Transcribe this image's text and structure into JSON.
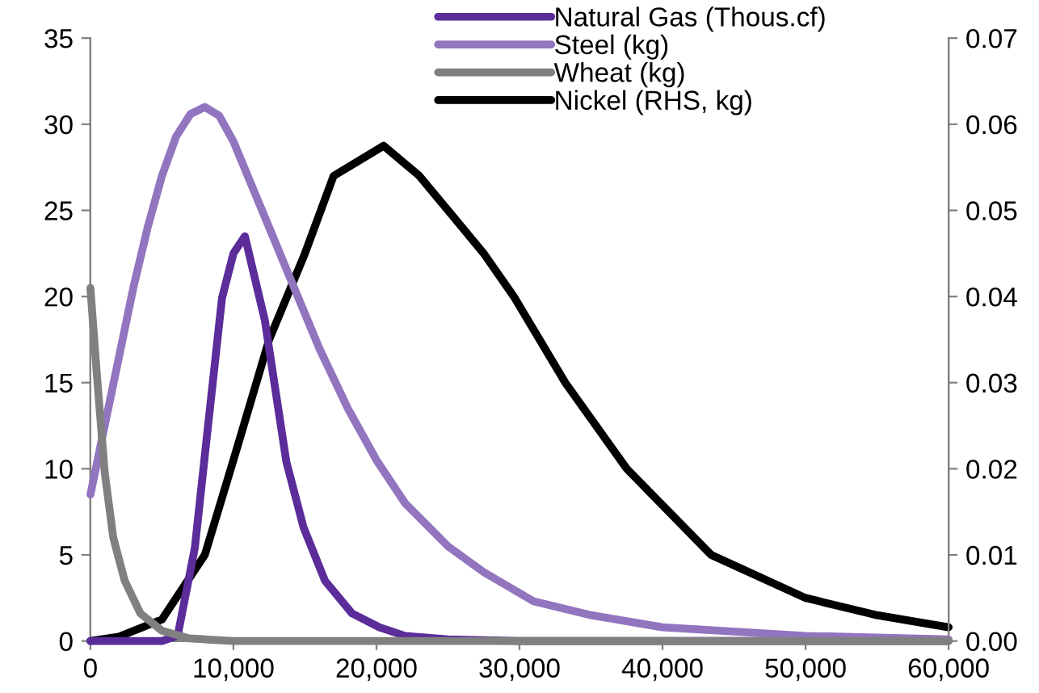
{
  "chart_data": {
    "type": "line",
    "xlim": [
      0,
      60000
    ],
    "xticks": [
      {
        "value": 0,
        "label": "0"
      },
      {
        "value": 10000,
        "label": "10,000"
      },
      {
        "value": 20000,
        "label": "20,000"
      },
      {
        "value": 30000,
        "label": "30,000"
      },
      {
        "value": 40000,
        "label": "40,000"
      },
      {
        "value": 50000,
        "label": "50,000"
      },
      {
        "value": 60000,
        "label": "60,000"
      }
    ],
    "ylim": [
      0,
      35
    ],
    "yticks": [
      0,
      5,
      10,
      15,
      20,
      25,
      30,
      35
    ],
    "y2lim": [
      0,
      0.07
    ],
    "y2ticks": [
      {
        "value": 0,
        "label": "0.00"
      },
      {
        "value": 0.01,
        "label": "0.01"
      },
      {
        "value": 0.02,
        "label": "0.02"
      },
      {
        "value": 0.03,
        "label": "0.03"
      },
      {
        "value": 0.04,
        "label": "0.04"
      },
      {
        "value": 0.05,
        "label": "0.05"
      },
      {
        "value": 0.06,
        "label": "0.06"
      },
      {
        "value": 0.07,
        "label": "0.07"
      }
    ],
    "grid": false,
    "legend": "top right",
    "marker": "none",
    "line_style": "solid",
    "series": [
      {
        "name": "Natural Gas (Thous.cf)",
        "color": "#5b2c9a",
        "x": [
          0,
          5000,
          6100,
          7300,
          8200,
          9200,
          10000,
          10800,
          12200,
          13700,
          14900,
          16400,
          18300,
          20200,
          22000,
          25000,
          30000,
          60000
        ],
        "values": [
          0,
          0,
          0.3,
          5.4,
          12.3,
          19.9,
          22.5,
          23.5,
          18.6,
          10.4,
          6.6,
          3.5,
          1.6,
          0.8,
          0.3,
          0.1,
          0,
          0
        ]
      },
      {
        "name": "Steel (kg)",
        "color": "#9274bf",
        "x": [
          0,
          1000,
          2000,
          3000,
          4000,
          5000,
          6000,
          7000,
          8000,
          9000,
          10000,
          12000,
          14000,
          16000,
          18000,
          20000,
          22000,
          25000,
          27500,
          31000,
          35000,
          40000,
          50000,
          60000
        ],
        "values": [
          8.5,
          12.5,
          16.5,
          20.5,
          24,
          27,
          29.3,
          30.6,
          31,
          30.5,
          29,
          25,
          21,
          17,
          13.5,
          10.5,
          8,
          5.5,
          4,
          2.3,
          1.5,
          0.8,
          0.3,
          0.1
        ]
      },
      {
        "name": "Wheat (kg)",
        "color": "#808080",
        "x": [
          0,
          450,
          1000,
          1600,
          2400,
          3500,
          5000,
          6900,
          10000,
          60000
        ],
        "values": [
          20.5,
          15.5,
          9.8,
          6,
          3.5,
          1.6,
          0.6,
          0.15,
          0,
          0
        ]
      },
      {
        "name": "Nickel (RHS, kg)",
        "color": "#000000",
        "axis": "y2",
        "x": [
          0,
          2000,
          5000,
          8000,
          10000,
          12500,
          15000,
          17000,
          20500,
          23000,
          25000,
          27500,
          29600,
          33200,
          37500,
          43400,
          50000,
          55000,
          60000
        ],
        "values": [
          0,
          0.0005,
          0.0025,
          0.01,
          0.021,
          0.035,
          0.045,
          0.054,
          0.0575,
          0.054,
          0.05,
          0.045,
          0.04,
          0.03,
          0.02,
          0.01,
          0.005,
          0.003,
          0.0016
        ]
      }
    ]
  }
}
